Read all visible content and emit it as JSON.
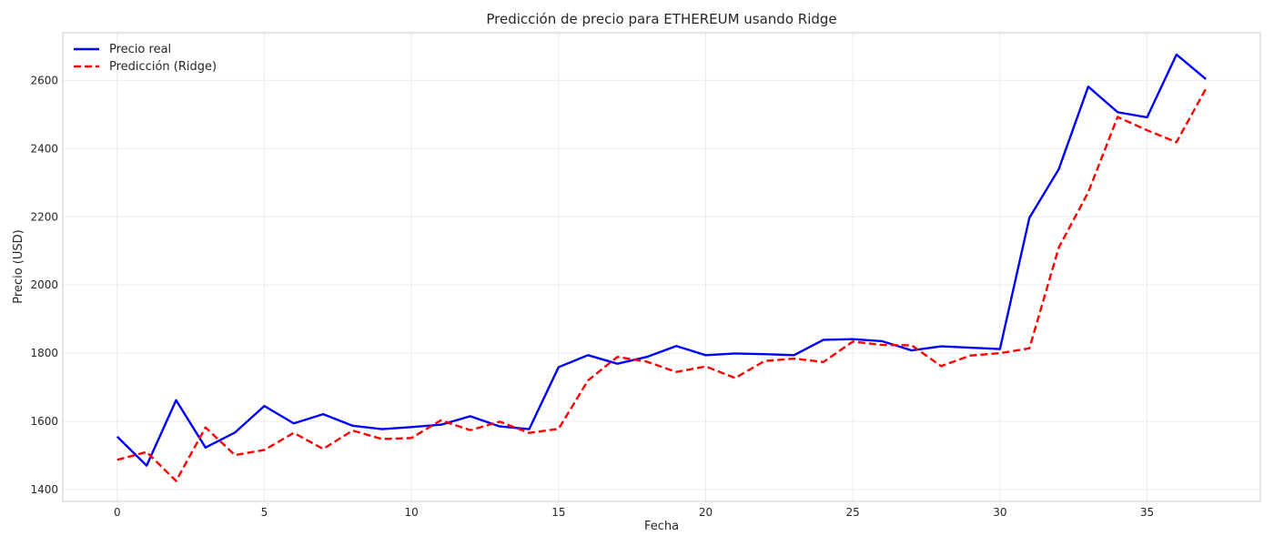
{
  "chart_data": {
    "type": "line",
    "title": "Predicción de precio para ETHEREUM usando Ridge",
    "xlabel": "Fecha",
    "ylabel": "Precio (USD)",
    "xlim": [
      -1.85,
      38.85
    ],
    "ylim": [
      1365,
      2740
    ],
    "xticks": [
      0,
      5,
      10,
      15,
      20,
      25,
      30,
      35
    ],
    "yticks": [
      1400,
      1600,
      1800,
      2000,
      2200,
      2400,
      2600
    ],
    "grid": true,
    "legend_position": "top-left",
    "x": [
      0,
      1,
      2,
      3,
      4,
      5,
      6,
      7,
      8,
      9,
      10,
      11,
      12,
      13,
      14,
      15,
      16,
      17,
      18,
      19,
      20,
      21,
      22,
      23,
      24,
      25,
      26,
      27,
      28,
      29,
      30,
      31,
      32,
      33,
      34,
      35,
      36,
      37
    ],
    "series": [
      {
        "name": "Precio real",
        "color": "#0000ff",
        "style": "solid",
        "values": [
          1555,
          1470,
          1662,
          1523,
          1567,
          1645,
          1594,
          1621,
          1587,
          1577,
          1583,
          1590,
          1615,
          1585,
          1577,
          1759,
          1794,
          1769,
          1789,
          1821,
          1794,
          1799,
          1797,
          1794,
          1839,
          1841,
          1835,
          1808,
          1820,
          1816,
          1812,
          2197,
          2340,
          2582,
          2507,
          2492,
          2676,
          2604
        ]
      },
      {
        "name": "Predicción (Ridge)",
        "color": "#ff0000",
        "style": "dashed",
        "values": [
          1487,
          1510,
          1425,
          1582,
          1501,
          1516,
          1566,
          1519,
          1573,
          1548,
          1551,
          1603,
          1574,
          1599,
          1566,
          1578,
          1720,
          1789,
          1775,
          1745,
          1761,
          1727,
          1777,
          1784,
          1774,
          1834,
          1824,
          1823,
          1762,
          1793,
          1800,
          1814,
          2110,
          2272,
          2493,
          2454,
          2419,
          2576
        ]
      }
    ]
  }
}
